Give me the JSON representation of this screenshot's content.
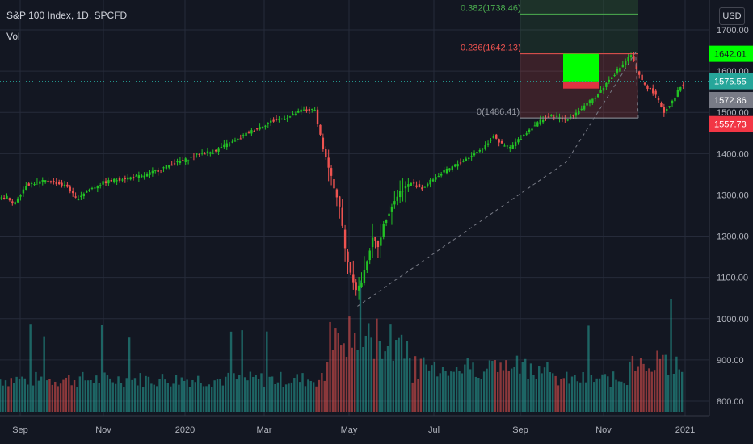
{
  "header": {
    "symbol": "S&P 100 Index, 1D, SPCFD",
    "vol_label": "Vol",
    "currency": "USD"
  },
  "colors": {
    "background": "#131722",
    "up": "#26a69a",
    "up_candle": "#22c224",
    "down": "#ef5350",
    "grid": "#262b3a",
    "axis_text": "#b2b5be",
    "fib_green": "#4caf50",
    "fib_red": "#ef5350",
    "fib_gray": "#9598a1",
    "target_box": "#00ff00"
  },
  "chart_data": {
    "type": "candlestick",
    "ylim": [
      780,
      1730
    ],
    "y_ticks": [
      "1700.00",
      "1600.00",
      "1500.00",
      "1400.00",
      "1300.00",
      "1200.00",
      "1100.00",
      "1000.00",
      "900.00",
      "800.00"
    ],
    "x_ticks": [
      "Sep",
      "Nov",
      "2020",
      "Mar",
      "May",
      "Jul",
      "Sep",
      "Nov",
      "2021"
    ],
    "price_path": [
      [
        0,
        1290
      ],
      [
        3,
        1295
      ],
      [
        5,
        1275
      ],
      [
        10,
        1325
      ],
      [
        18,
        1335
      ],
      [
        25,
        1320
      ],
      [
        28,
        1290
      ],
      [
        32,
        1310
      ],
      [
        38,
        1330
      ],
      [
        45,
        1340
      ],
      [
        52,
        1345
      ],
      [
        58,
        1360
      ],
      [
        63,
        1375
      ],
      [
        68,
        1385
      ],
      [
        73,
        1400
      ],
      [
        78,
        1405
      ],
      [
        82,
        1420
      ],
      [
        86,
        1430
      ],
      [
        90,
        1448
      ],
      [
        95,
        1465
      ],
      [
        99,
        1478
      ],
      [
        103,
        1485
      ],
      [
        106,
        1490
      ],
      [
        110,
        1505
      ],
      [
        115,
        1505
      ],
      [
        118,
        1410
      ],
      [
        121,
        1340
      ],
      [
        124,
        1270
      ],
      [
        126,
        1165
      ],
      [
        128,
        1110
      ],
      [
        130,
        1070
      ],
      [
        132,
        1090
      ],
      [
        134,
        1145
      ],
      [
        136,
        1195
      ],
      [
        138,
        1175
      ],
      [
        140,
        1230
      ],
      [
        143,
        1275
      ],
      [
        146,
        1310
      ],
      [
        150,
        1330
      ],
      [
        154,
        1315
      ],
      [
        158,
        1340
      ],
      [
        163,
        1360
      ],
      [
        168,
        1380
      ],
      [
        173,
        1400
      ],
      [
        177,
        1420
      ],
      [
        180,
        1445
      ],
      [
        183,
        1420
      ],
      [
        186,
        1415
      ],
      [
        190,
        1440
      ],
      [
        194,
        1465
      ],
      [
        198,
        1485
      ],
      [
        202,
        1490
      ],
      [
        206,
        1482
      ],
      [
        210,
        1500
      ],
      [
        214,
        1520
      ],
      [
        218,
        1545
      ],
      [
        222,
        1580
      ],
      [
        226,
        1610
      ],
      [
        228,
        1625
      ],
      [
        230,
        1640
      ],
      [
        232,
        1600
      ],
      [
        234,
        1575
      ],
      [
        236,
        1560
      ],
      [
        238,
        1550
      ],
      [
        240,
        1525
      ],
      [
        242,
        1500
      ],
      [
        244,
        1520
      ],
      [
        246,
        1540
      ],
      [
        248,
        1565
      ]
    ],
    "last_close": 1572.86,
    "last_price_line": 1575.55,
    "fibonacci": [
      {
        "level": "0.382",
        "value": "1738.46",
        "price": 1738.46
      },
      {
        "level": "0.236",
        "value": "1642.13",
        "price": 1642.13
      },
      {
        "level": "0",
        "value": "1486.41",
        "price": 1486.41
      }
    ],
    "price_labels": [
      "1642.01",
      "1575.55",
      "1572.86",
      "1557.73"
    ],
    "target_zone": {
      "top": 1642,
      "bottom": 1575
    },
    "stop_zone": {
      "top": 1575,
      "bottom": 1557.73
    },
    "volume": {
      "type": "bar",
      "note": "daily volume bars"
    }
  }
}
